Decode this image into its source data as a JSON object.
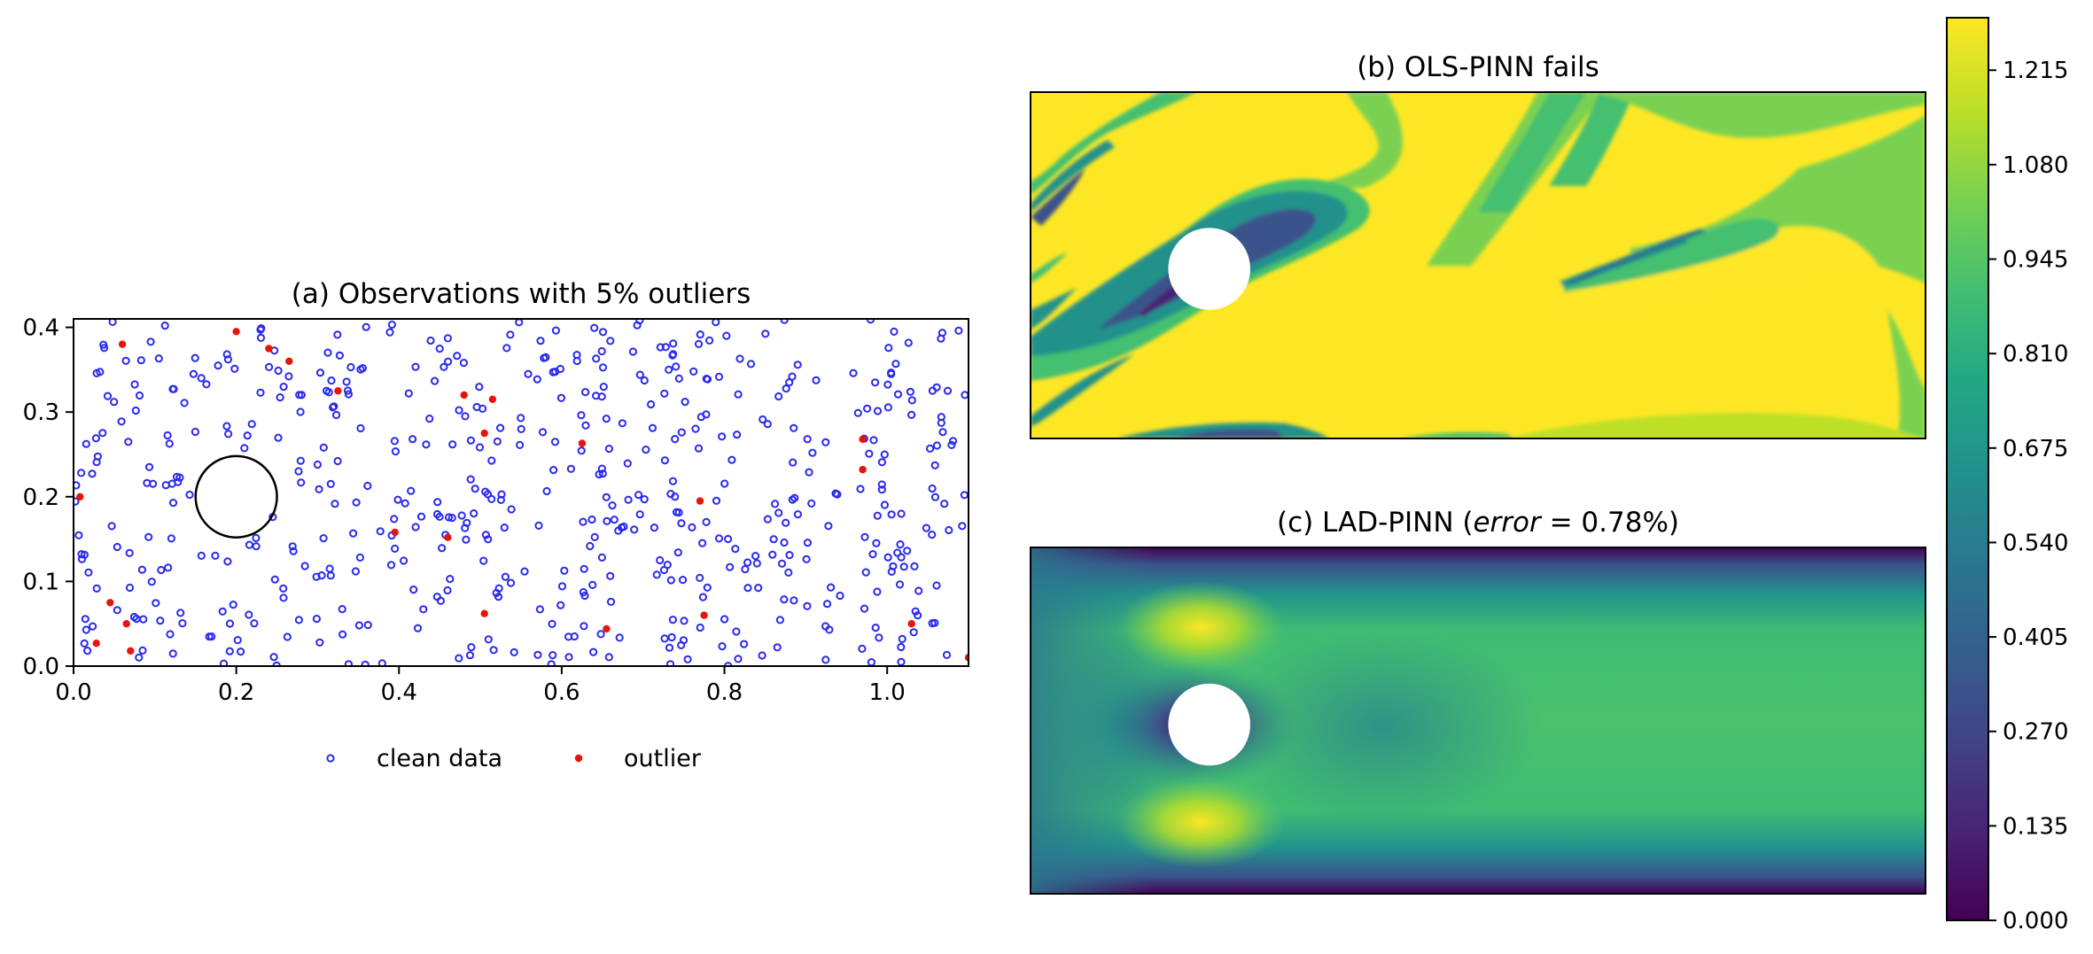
{
  "chart_data": [
    {
      "type": "scatter",
      "title": "(a) Observations with 5% outliers",
      "xlim": [
        0.0,
        1.1
      ],
      "ylim": [
        0.0,
        0.41
      ],
      "xticks": [
        "0.0",
        "0.2",
        "0.4",
        "0.6",
        "0.8",
        "1.0"
      ],
      "xtick_values": [
        0.0,
        0.2,
        0.4,
        0.6,
        0.8,
        1.0
      ],
      "yticks": [
        "0.0",
        "0.1",
        "0.2",
        "0.3",
        "0.4"
      ],
      "ytick_values": [
        0.0,
        0.1,
        0.2,
        0.3,
        0.4
      ],
      "legend": {
        "placement": "below",
        "entries": [
          "clean data",
          "outlier"
        ]
      },
      "cylinder": {
        "center": [
          0.2,
          0.2
        ],
        "radius": 0.05
      },
      "clean_count": 560,
      "clean_color": "#2a2af0",
      "outliers": {
        "color": "#e8140c",
        "points": [
          [
            0.06,
            0.38
          ],
          [
            0.2,
            0.395
          ],
          [
            0.24,
            0.375
          ],
          [
            0.265,
            0.36
          ],
          [
            0.325,
            0.325
          ],
          [
            0.48,
            0.32
          ],
          [
            0.515,
            0.315
          ],
          [
            0.505,
            0.275
          ],
          [
            0.625,
            0.263
          ],
          [
            0.97,
            0.268
          ],
          [
            0.97,
            0.232
          ],
          [
            0.008,
            0.2
          ],
          [
            0.77,
            0.195
          ],
          [
            0.395,
            0.158
          ],
          [
            0.46,
            0.152
          ],
          [
            0.045,
            0.075
          ],
          [
            0.065,
            0.05
          ],
          [
            0.028,
            0.027
          ],
          [
            0.07,
            0.018
          ],
          [
            0.505,
            0.062
          ],
          [
            0.655,
            0.044
          ],
          [
            0.775,
            0.06
          ],
          [
            1.03,
            0.05
          ],
          [
            1.1,
            0.01
          ]
        ]
      }
    },
    {
      "type": "heatmap",
      "title": "(b) OLS-PINN fails",
      "style": "filled-contour"
    },
    {
      "type": "heatmap",
      "title_text": "(c) LAD-PINN (",
      "title_math": "error",
      "title_value": " = 0.78%)",
      "style": "smooth"
    }
  ],
  "colorbar": {
    "min": 0.0,
    "max": 1.29,
    "ticks": [
      "0.000",
      "0.135",
      "0.270",
      "0.405",
      "0.540",
      "0.675",
      "0.810",
      "0.945",
      "1.080",
      "1.215"
    ],
    "tick_values": [
      0.0,
      0.135,
      0.27,
      0.405,
      0.54,
      0.675,
      0.81,
      0.945,
      1.08,
      1.215
    ],
    "colormap": "viridis"
  }
}
